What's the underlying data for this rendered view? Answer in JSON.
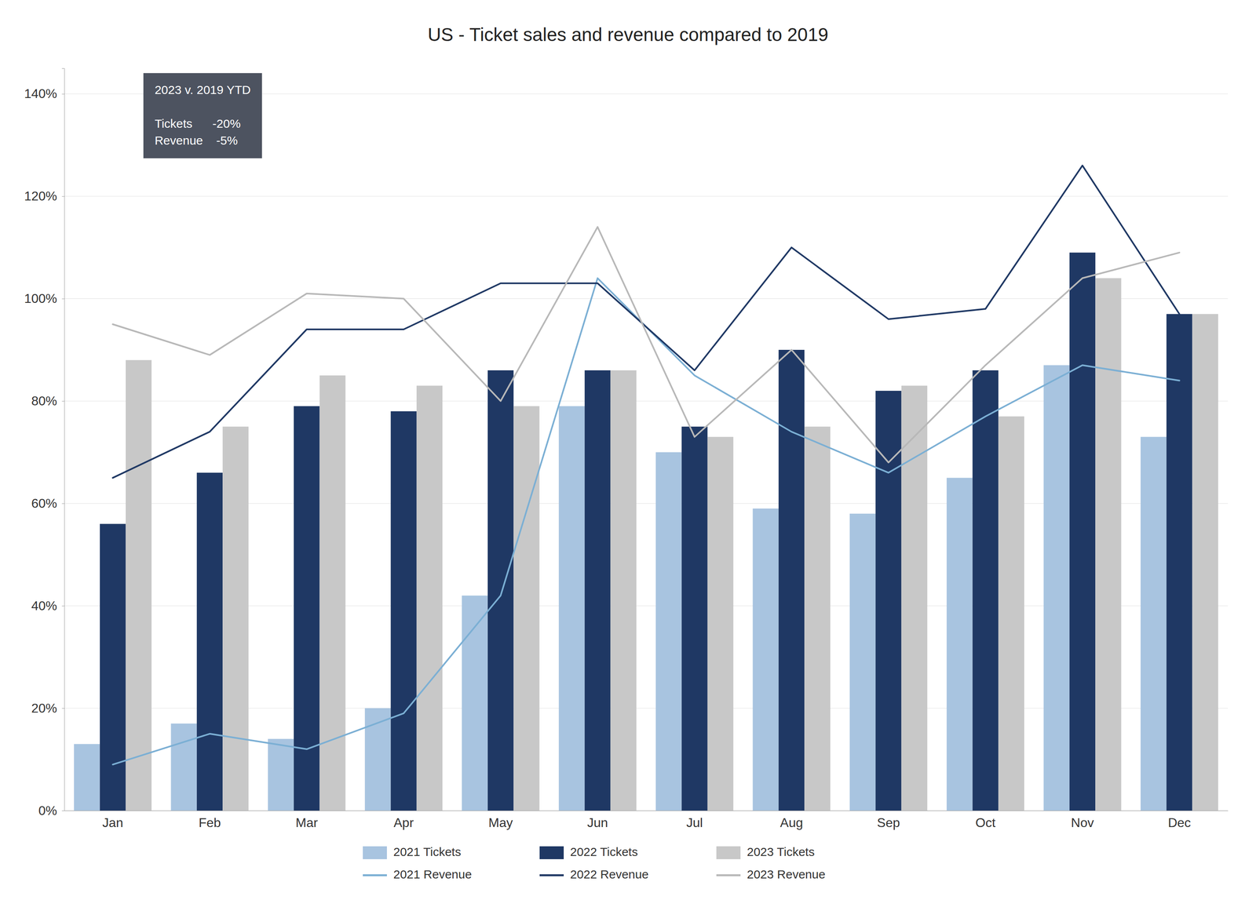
{
  "chart_data": {
    "type": "bar",
    "title": "US - Ticket sales and revenue compared to 2019",
    "categories": [
      "Jan",
      "Feb",
      "Mar",
      "Apr",
      "May",
      "Jun",
      "Jul",
      "Aug",
      "Sep",
      "Oct",
      "Nov",
      "Dec"
    ],
    "series": [
      {
        "name": "2021 Tickets",
        "type": "bar",
        "color": "#a8c4e0",
        "values": [
          0.13,
          0.17,
          0.14,
          0.2,
          0.42,
          0.79,
          0.7,
          0.59,
          0.58,
          0.65,
          0.87,
          0.73
        ]
      },
      {
        "name": "2022 Tickets",
        "type": "bar",
        "color": "#1f3864",
        "values": [
          0.56,
          0.66,
          0.79,
          0.78,
          0.86,
          0.86,
          0.75,
          0.9,
          0.82,
          0.86,
          1.09,
          0.97
        ]
      },
      {
        "name": "2023 Tickets",
        "type": "bar",
        "color": "#c8c8c8",
        "values": [
          0.88,
          0.75,
          0.85,
          0.83,
          0.79,
          0.86,
          0.73,
          0.75,
          0.83,
          0.77,
          1.04,
          0.97
        ]
      },
      {
        "name": "2021 Revenue",
        "type": "line",
        "color": "#7bafd4",
        "values": [
          0.09,
          0.15,
          0.12,
          0.19,
          0.42,
          1.04,
          0.85,
          0.74,
          0.66,
          0.77,
          0.87,
          0.84
        ]
      },
      {
        "name": "2022 Revenue",
        "type": "line",
        "color": "#1f3864",
        "values": [
          0.65,
          0.74,
          0.94,
          0.94,
          1.03,
          1.03,
          0.86,
          1.1,
          0.96,
          0.98,
          1.26,
          0.97
        ]
      },
      {
        "name": "2023 Revenue",
        "type": "line",
        "color": "#b8b8b8",
        "values": [
          0.95,
          0.89,
          1.01,
          1.0,
          0.8,
          1.14,
          0.73,
          0.9,
          0.68,
          0.87,
          1.04,
          1.09
        ]
      }
    ],
    "ylim": [
      0.0,
      1.45
    ],
    "yticks": [
      {
        "value": 0.0,
        "label": "0%"
      },
      {
        "value": 0.2,
        "label": "20%"
      },
      {
        "value": 0.4,
        "label": "40%"
      },
      {
        "value": 0.6,
        "label": "60%"
      },
      {
        "value": 0.8,
        "label": "80%"
      },
      {
        "value": 1.0,
        "label": "100%"
      },
      {
        "value": 1.2,
        "label": "120%"
      },
      {
        "value": 1.4,
        "label": "140%"
      }
    ],
    "grid": true,
    "legend": "bottom",
    "annotations": [
      "2023 v. 2019 YTD",
      "Tickets      -20%",
      "Revenue    -5%"
    ]
  }
}
